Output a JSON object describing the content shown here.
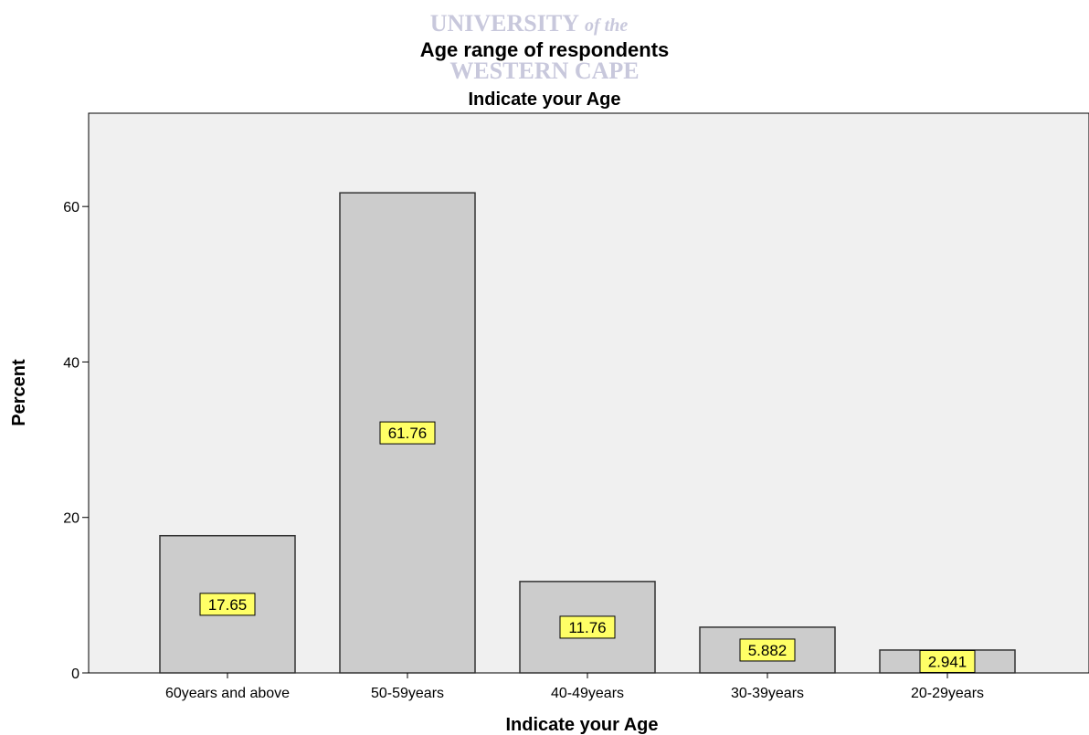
{
  "watermark": {
    "line1": "UNIVERSITY",
    "line1_suffix": "of the",
    "line2": "WESTERN CAPE"
  },
  "chart_data": {
    "type": "bar",
    "title": "Age range of respondents",
    "subtitle": "Indicate your Age",
    "xlabel": "Indicate your Age",
    "ylabel": "Percent",
    "categories": [
      "60years and above",
      "50-59years",
      "40-49years",
      "30-39years",
      "20-29years"
    ],
    "values": [
      17.65,
      61.76,
      11.76,
      5.882,
      2.941
    ],
    "data_labels": [
      "17.65",
      "61.76",
      "11.76",
      "5.882",
      "2.941"
    ],
    "ylim": [
      0,
      72
    ],
    "yticks": [
      0,
      20,
      40,
      60
    ],
    "ytick_labels": [
      "0",
      "20",
      "40",
      "60"
    ],
    "grid": false,
    "colors": {
      "bar_fill": "#cccccc",
      "bar_stroke": "#333333",
      "plot_background": "#f0f0f0",
      "label_fill": "#ffff66"
    }
  }
}
